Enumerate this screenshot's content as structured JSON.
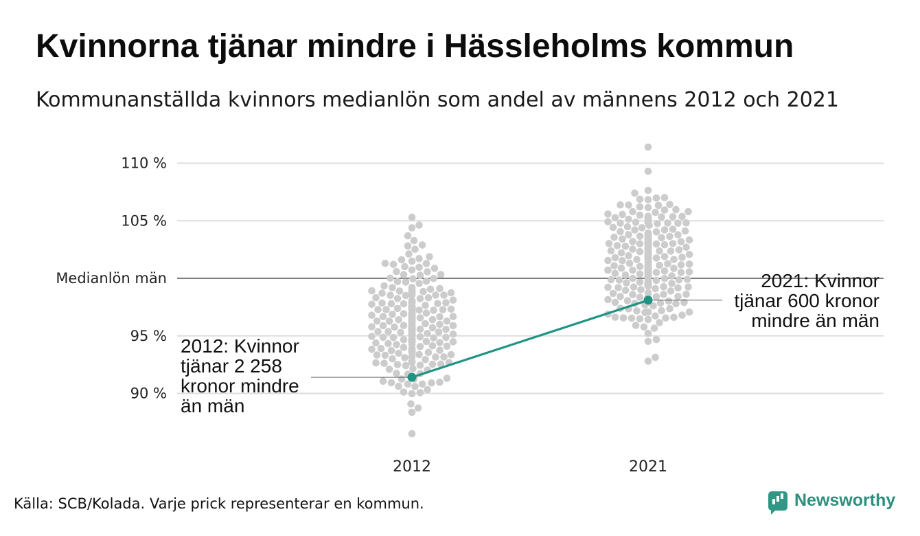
{
  "title": "Kvinnorna tjänar mindre i Hässleholms kommun",
  "subtitle": "Kommunanställda kvinnors medianlön som andel av männens 2012 och 2021",
  "footer": "Källa: SCB/Kolada. Varje prick representerar en kommun.",
  "brand": "Newsworthy",
  "colors": {
    "dot": "#cccccc",
    "highlight": "#1f9484",
    "grid": "#dddddd",
    "reference": "#333333"
  },
  "chart_data": {
    "type": "scatter",
    "title": "Kvinnorna tjänar mindre i Hässleholms kommun",
    "subtitle": "Kommunanställda kvinnors medianlön som andel av männens 2012 och 2021",
    "categories": [
      "2012",
      "2021"
    ],
    "ylim": [
      86,
      112
    ],
    "y_ticks": [
      {
        "value": 90,
        "label": "90 %"
      },
      {
        "value": 95,
        "label": "95 %"
      },
      {
        "value": 100,
        "label": "Medianlön män"
      },
      {
        "value": 105,
        "label": "105 %"
      },
      {
        "value": 110,
        "label": "110 %"
      }
    ],
    "reference_line": {
      "value": 100,
      "label": "Medianlön män"
    },
    "grid": true,
    "beeswarm": [
      {
        "category": "2012",
        "min": 86.5,
        "max": 105.3,
        "center": 96.4,
        "spread": 2.9,
        "count": 290
      },
      {
        "category": "2021",
        "min": 92.8,
        "max": 111.4,
        "center": 101.4,
        "spread": 2.9,
        "count": 290
      }
    ],
    "highlight": {
      "name": "Hässleholms kommun",
      "points": [
        {
          "x": "2012",
          "y": 91.4
        },
        {
          "x": "2021",
          "y": 98.1
        }
      ],
      "annotations": [
        {
          "x": "2012",
          "lines": [
            "2012: Kvinnor",
            "tjänar 2 258",
            "kronor mindre",
            "än män"
          ]
        },
        {
          "x": "2021",
          "lines": [
            "2021: Kvinnor",
            "tjänar 600 kronor",
            "mindre än män"
          ]
        }
      ]
    }
  }
}
